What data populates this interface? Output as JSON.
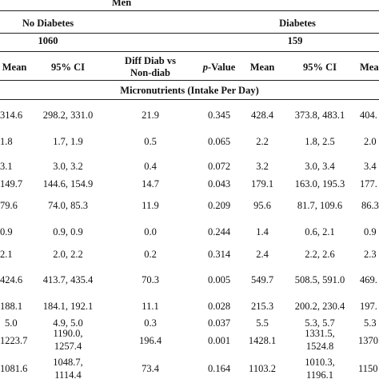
{
  "header": {
    "group_men": "Men",
    "no_diabetes": "No Diabetes",
    "diabetes": "Diabetes",
    "n_no_diabetes": "1060",
    "n_diabetes": "159"
  },
  "columns": {
    "mean1": "Mean",
    "ci1": "95% CI",
    "diff_line1": "Diff Diab vs",
    "diff_line2": "Non-diab",
    "p_italic": "p",
    "p_rest": "-Value",
    "mean2": "Mean",
    "ci2": "95% CI",
    "mean3_partial": "Mea"
  },
  "section": "Micronutrients (Intake Per Day)",
  "rows": [
    {
      "mean": "314.6",
      "ci": "298.2, 331.0",
      "diff": "21.9",
      "p": "0.345",
      "dmean": "428.4",
      "dci": "373.8, 483.1",
      "next": "404."
    },
    {
      "mean": "1.8",
      "ci": "1.7, 1.9",
      "diff": "0.5",
      "p": "0.065",
      "dmean": "2.2",
      "dci": "1.8, 2.5",
      "next": "2.0"
    },
    {
      "mean": "3.1",
      "ci": "3.0, 3.2",
      "diff": "0.4",
      "p": "0.072",
      "dmean": "3.2",
      "dci": "3.0, 3.4",
      "next": "3.4"
    },
    {
      "mean": "149.7",
      "ci": "144.6, 154.9",
      "diff": "14.7",
      "p": "0.043",
      "dmean": "179.1",
      "dci": "163.0, 195.3",
      "next": "177."
    },
    {
      "mean": "79.6",
      "ci": "74.0, 85.3",
      "diff": "11.9",
      "p": "0.209",
      "dmean": "95.6",
      "dci": "81.7, 109.6",
      "next": "86.3"
    },
    {
      "mean": "0.9",
      "ci": "0.9, 0.9",
      "diff": "0.0",
      "p": "0.244",
      "dmean": "1.4",
      "dci": "0.6, 2.1",
      "next": "0.9"
    },
    {
      "mean": "2.1",
      "ci": "2.0, 2.2",
      "diff": "0.2",
      "p": "0.314",
      "dmean": "2.4",
      "dci": "2.2, 2.6",
      "next": "2.3"
    },
    {
      "mean": "424.6",
      "ci": "413.7, 435.4",
      "diff": "70.3",
      "p": "0.005",
      "dmean": "549.7",
      "dci": "508.5, 591.0",
      "next": "469."
    },
    {
      "mean": "188.1",
      "ci": "184.1, 192.1",
      "diff": "11.1",
      "p": "0.028",
      "dmean": "215.3",
      "dci": "200.2, 230.4",
      "next": "197."
    },
    {
      "mean": "5.0",
      "ci": "4.9, 5.0",
      "diff": "0.3",
      "p": "0.037",
      "dmean": "5.5",
      "dci": "5.3, 5.7",
      "next": "5.3"
    },
    {
      "mean": "1223.7",
      "ci1": "1190.0,",
      "ci2": "1257.4",
      "diff": "196.4",
      "p": "0.001",
      "dmean": "1428.1",
      "dci1": "1331.5,",
      "dci2": "1524.8",
      "next": "1370"
    },
    {
      "mean": "1081.6",
      "ci1": "1048.7,",
      "ci2": "1114.4",
      "diff": "73.4",
      "p": "0.164",
      "dmean": "1103.2",
      "dci1": "1010.3,",
      "dci2": "1196.1",
      "next": "1150"
    }
  ]
}
